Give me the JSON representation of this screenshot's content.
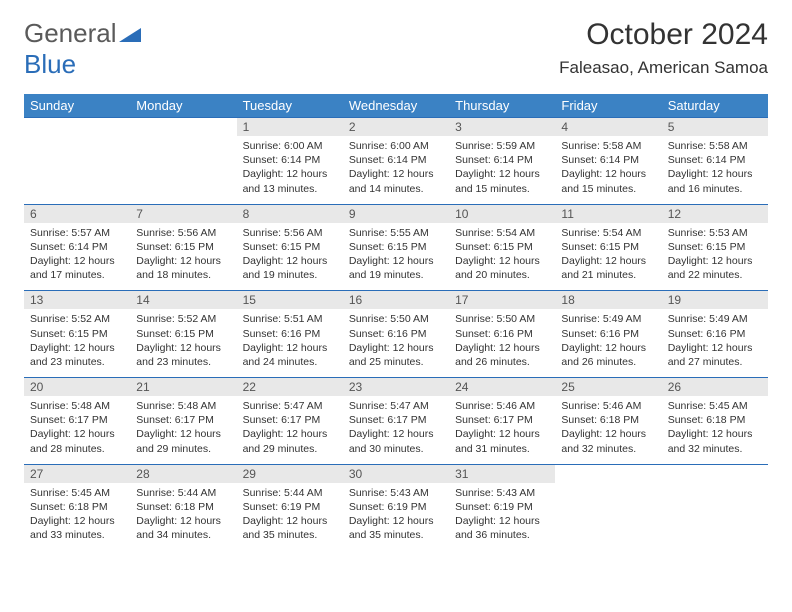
{
  "logo": {
    "word1": "General",
    "word2": "Blue"
  },
  "title": "October 2024",
  "location": "Faleasao, American Samoa",
  "colors": {
    "header_bg": "#3b82c4",
    "header_text": "#ffffff",
    "daynum_bg": "#e8e8e8",
    "border": "#2a6db8",
    "logo_gray": "#5a5a5a",
    "logo_blue": "#2a6db8"
  },
  "day_headers": [
    "Sunday",
    "Monday",
    "Tuesday",
    "Wednesday",
    "Thursday",
    "Friday",
    "Saturday"
  ],
  "weeks": [
    {
      "nums": [
        "",
        "",
        "1",
        "2",
        "3",
        "4",
        "5"
      ],
      "cells": [
        null,
        null,
        {
          "sunrise": "6:00 AM",
          "sunset": "6:14 PM",
          "daylight": "12 hours and 13 minutes."
        },
        {
          "sunrise": "6:00 AM",
          "sunset": "6:14 PM",
          "daylight": "12 hours and 14 minutes."
        },
        {
          "sunrise": "5:59 AM",
          "sunset": "6:14 PM",
          "daylight": "12 hours and 15 minutes."
        },
        {
          "sunrise": "5:58 AM",
          "sunset": "6:14 PM",
          "daylight": "12 hours and 15 minutes."
        },
        {
          "sunrise": "5:58 AM",
          "sunset": "6:14 PM",
          "daylight": "12 hours and 16 minutes."
        }
      ]
    },
    {
      "nums": [
        "6",
        "7",
        "8",
        "9",
        "10",
        "11",
        "12"
      ],
      "cells": [
        {
          "sunrise": "5:57 AM",
          "sunset": "6:14 PM",
          "daylight": "12 hours and 17 minutes."
        },
        {
          "sunrise": "5:56 AM",
          "sunset": "6:15 PM",
          "daylight": "12 hours and 18 minutes."
        },
        {
          "sunrise": "5:56 AM",
          "sunset": "6:15 PM",
          "daylight": "12 hours and 19 minutes."
        },
        {
          "sunrise": "5:55 AM",
          "sunset": "6:15 PM",
          "daylight": "12 hours and 19 minutes."
        },
        {
          "sunrise": "5:54 AM",
          "sunset": "6:15 PM",
          "daylight": "12 hours and 20 minutes."
        },
        {
          "sunrise": "5:54 AM",
          "sunset": "6:15 PM",
          "daylight": "12 hours and 21 minutes."
        },
        {
          "sunrise": "5:53 AM",
          "sunset": "6:15 PM",
          "daylight": "12 hours and 22 minutes."
        }
      ]
    },
    {
      "nums": [
        "13",
        "14",
        "15",
        "16",
        "17",
        "18",
        "19"
      ],
      "cells": [
        {
          "sunrise": "5:52 AM",
          "sunset": "6:15 PM",
          "daylight": "12 hours and 23 minutes."
        },
        {
          "sunrise": "5:52 AM",
          "sunset": "6:15 PM",
          "daylight": "12 hours and 23 minutes."
        },
        {
          "sunrise": "5:51 AM",
          "sunset": "6:16 PM",
          "daylight": "12 hours and 24 minutes."
        },
        {
          "sunrise": "5:50 AM",
          "sunset": "6:16 PM",
          "daylight": "12 hours and 25 minutes."
        },
        {
          "sunrise": "5:50 AM",
          "sunset": "6:16 PM",
          "daylight": "12 hours and 26 minutes."
        },
        {
          "sunrise": "5:49 AM",
          "sunset": "6:16 PM",
          "daylight": "12 hours and 26 minutes."
        },
        {
          "sunrise": "5:49 AM",
          "sunset": "6:16 PM",
          "daylight": "12 hours and 27 minutes."
        }
      ]
    },
    {
      "nums": [
        "20",
        "21",
        "22",
        "23",
        "24",
        "25",
        "26"
      ],
      "cells": [
        {
          "sunrise": "5:48 AM",
          "sunset": "6:17 PM",
          "daylight": "12 hours and 28 minutes."
        },
        {
          "sunrise": "5:48 AM",
          "sunset": "6:17 PM",
          "daylight": "12 hours and 29 minutes."
        },
        {
          "sunrise": "5:47 AM",
          "sunset": "6:17 PM",
          "daylight": "12 hours and 29 minutes."
        },
        {
          "sunrise": "5:47 AM",
          "sunset": "6:17 PM",
          "daylight": "12 hours and 30 minutes."
        },
        {
          "sunrise": "5:46 AM",
          "sunset": "6:17 PM",
          "daylight": "12 hours and 31 minutes."
        },
        {
          "sunrise": "5:46 AM",
          "sunset": "6:18 PM",
          "daylight": "12 hours and 32 minutes."
        },
        {
          "sunrise": "5:45 AM",
          "sunset": "6:18 PM",
          "daylight": "12 hours and 32 minutes."
        }
      ]
    },
    {
      "nums": [
        "27",
        "28",
        "29",
        "30",
        "31",
        "",
        ""
      ],
      "cells": [
        {
          "sunrise": "5:45 AM",
          "sunset": "6:18 PM",
          "daylight": "12 hours and 33 minutes."
        },
        {
          "sunrise": "5:44 AM",
          "sunset": "6:18 PM",
          "daylight": "12 hours and 34 minutes."
        },
        {
          "sunrise": "5:44 AM",
          "sunset": "6:19 PM",
          "daylight": "12 hours and 35 minutes."
        },
        {
          "sunrise": "5:43 AM",
          "sunset": "6:19 PM",
          "daylight": "12 hours and 35 minutes."
        },
        {
          "sunrise": "5:43 AM",
          "sunset": "6:19 PM",
          "daylight": "12 hours and 36 minutes."
        },
        null,
        null
      ]
    }
  ],
  "labels": {
    "sunrise": "Sunrise: ",
    "sunset": "Sunset: ",
    "daylight": "Daylight: "
  }
}
